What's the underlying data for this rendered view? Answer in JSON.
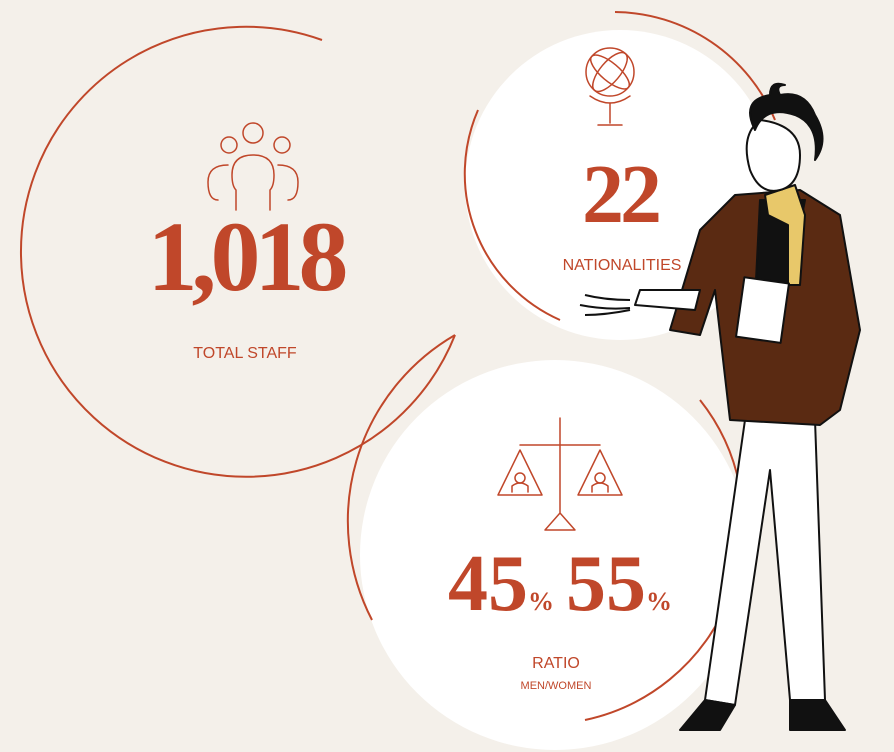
{
  "stats": [
    {
      "value": "1,018",
      "label": "TOTAL STAFF"
    },
    {
      "value": "22",
      "label": "NATIONALITIES"
    },
    {
      "men": "45",
      "men_unit": "%",
      "women": "55",
      "women_unit": "%",
      "label": "RATIO",
      "sublabel": "MEN/WOMEN"
    }
  ]
}
